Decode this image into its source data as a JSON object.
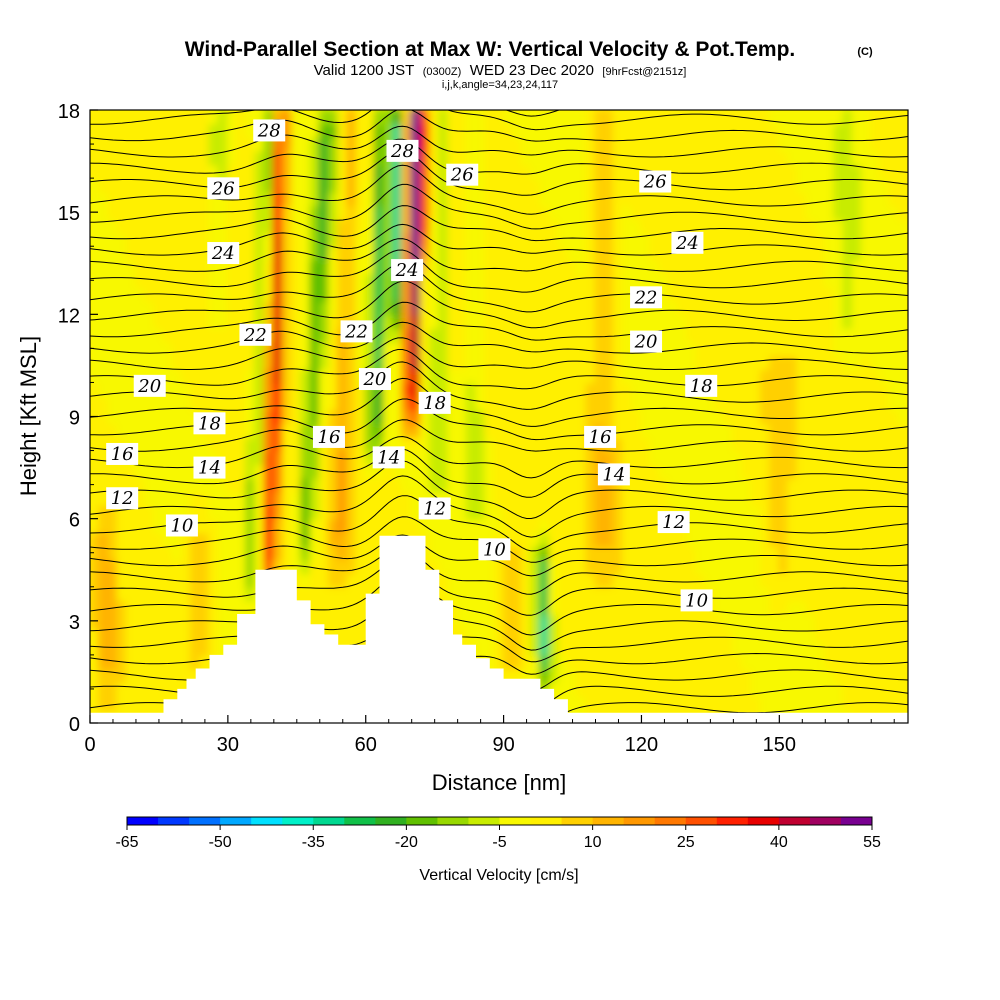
{
  "chart_data": {
    "type": "heatmap",
    "title": "Wind-Parallel Section at Max W: Vertical Velocity & Pot.Temp.",
    "title_mark": "(C)",
    "subtitle_main": "Valid 1200 JST",
    "subtitle_z": "(0300Z)",
    "subtitle_date": "WED 23 Dec 2020",
    "subtitle_fcst": "[9hrFcst@2151z]",
    "subtitle_ijk": "i,j,k,angle=34,23,24,117",
    "xlabel": "Distance [nm]",
    "ylabel": "Height [Kft MSL]",
    "xlim": [
      0,
      178
    ],
    "ylim": [
      0,
      18
    ],
    "xticks": [
      0,
      30,
      60,
      90,
      120,
      150
    ],
    "yticks": [
      0,
      3,
      6,
      9,
      12,
      15,
      18
    ],
    "grid": false,
    "colorbar": {
      "label": "Vertical Velocity [cm/s]",
      "ticks": [
        -65,
        -50,
        -35,
        -20,
        -5,
        10,
        25,
        40,
        55
      ],
      "levels": [
        -65,
        -60,
        -55,
        -50,
        -45,
        -40,
        -35,
        -30,
        -25,
        -20,
        -15,
        -10,
        -5,
        0,
        5,
        10,
        15,
        20,
        25,
        30,
        35,
        40,
        45,
        50,
        55
      ],
      "colors": [
        "#0000ff",
        "#0038ff",
        "#0070ff",
        "#00a8ff",
        "#00e0ff",
        "#00f0c8",
        "#00d890",
        "#10c048",
        "#30b020",
        "#60c000",
        "#98d800",
        "#c8ec00",
        "#f8f800",
        "#fff000",
        "#ffd000",
        "#ffb400",
        "#ff9800",
        "#ff7800",
        "#ff5000",
        "#ff2000",
        "#e80000",
        "#c00030",
        "#a00060",
        "#780090"
      ]
    },
    "theta_contour_labels": [
      {
        "value": "28",
        "x": 39,
        "y": 17.4
      },
      {
        "value": "28",
        "x": 68,
        "y": 16.8
      },
      {
        "value": "26",
        "x": 29,
        "y": 15.7
      },
      {
        "value": "26",
        "x": 81,
        "y": 16.1
      },
      {
        "value": "26",
        "x": 123,
        "y": 15.9
      },
      {
        "value": "24",
        "x": 29,
        "y": 13.8
      },
      {
        "value": "24",
        "x": 69,
        "y": 13.3
      },
      {
        "value": "24",
        "x": 130,
        "y": 14.1
      },
      {
        "value": "22",
        "x": 36,
        "y": 11.4
      },
      {
        "value": "22",
        "x": 58,
        "y": 11.5
      },
      {
        "value": "22",
        "x": 121,
        "y": 12.5
      },
      {
        "value": "20",
        "x": 13,
        "y": 9.9
      },
      {
        "value": "20",
        "x": 62,
        "y": 10.1
      },
      {
        "value": "20",
        "x": 121,
        "y": 11.2
      },
      {
        "value": "18",
        "x": 26,
        "y": 8.8
      },
      {
        "value": "18",
        "x": 75,
        "y": 9.4
      },
      {
        "value": "18",
        "x": 133,
        "y": 9.9
      },
      {
        "value": "16",
        "x": 7,
        "y": 7.9
      },
      {
        "value": "16",
        "x": 52,
        "y": 8.4
      },
      {
        "value": "16",
        "x": 111,
        "y": 8.4
      },
      {
        "value": "14",
        "x": 26,
        "y": 7.5
      },
      {
        "value": "14",
        "x": 65,
        "y": 7.8
      },
      {
        "value": "14",
        "x": 114,
        "y": 7.3
      },
      {
        "value": "12",
        "x": 7,
        "y": 6.6
      },
      {
        "value": "12",
        "x": 75,
        "y": 6.3
      },
      {
        "value": "12",
        "x": 127,
        "y": 5.9
      },
      {
        "value": "10",
        "x": 20,
        "y": 5.8
      },
      {
        "value": "10",
        "x": 88,
        "y": 5.1
      },
      {
        "value": "10",
        "x": 132,
        "y": 3.6
      }
    ],
    "terrain": {
      "x": [
        0,
        16,
        16,
        19,
        19,
        21,
        21,
        23,
        23,
        26,
        26,
        29,
        29,
        32,
        32,
        36,
        36,
        45,
        45,
        48,
        48,
        51,
        51,
        54,
        54,
        60,
        60,
        63,
        63,
        73,
        73,
        76,
        76,
        79,
        79,
        81,
        81,
        84,
        84,
        87,
        87,
        90,
        90,
        98,
        98,
        101,
        101,
        104,
        104,
        113,
        113,
        178
      ],
      "y": [
        0.3,
        0.3,
        0.7,
        0.7,
        1.0,
        1.0,
        1.3,
        1.3,
        1.6,
        1.6,
        2.0,
        2.0,
        2.3,
        2.3,
        3.2,
        3.2,
        4.5,
        4.5,
        3.6,
        3.6,
        2.9,
        2.9,
        2.6,
        2.6,
        2.3,
        2.3,
        3.8,
        3.8,
        5.5,
        5.5,
        4.5,
        4.5,
        3.6,
        3.6,
        2.6,
        2.6,
        2.3,
        2.3,
        1.9,
        1.9,
        1.6,
        1.6,
        1.3,
        1.3,
        1.0,
        1.0,
        0.7,
        0.7,
        0.3,
        0.3,
        0.3,
        0.3
      ]
    }
  }
}
